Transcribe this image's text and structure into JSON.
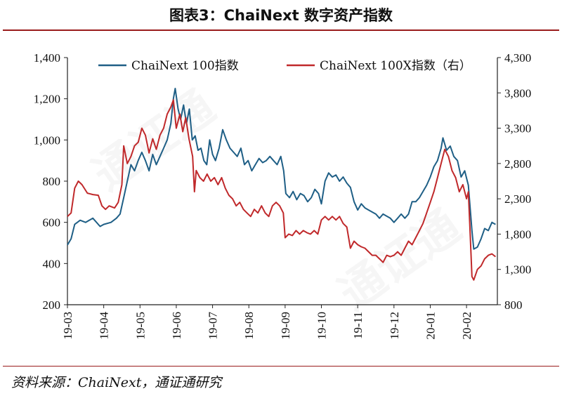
{
  "title": "图表3：ChaiNext 数字资产指数",
  "source": "资料来源：ChaiNext，通证通研究",
  "chart_data": {
    "type": "line",
    "x_ticks": [
      "19-03",
      "19-04",
      "19-05",
      "19-06",
      "19-07",
      "19-08",
      "19-09",
      "19-10",
      "19-11",
      "19-12",
      "20-01",
      "20-02"
    ],
    "y_left_ticks": [
      "1,400",
      "1,200",
      "1,000",
      "800",
      "600",
      "400",
      "200"
    ],
    "y_right_ticks": [
      "4,300",
      "3,800",
      "3,300",
      "2,800",
      "2,300",
      "1,800",
      "1,300",
      "800"
    ],
    "y_left_range": [
      200,
      1400
    ],
    "y_right_range": [
      800,
      4300
    ],
    "x_range": [
      0,
      11.85
    ],
    "grid": false,
    "legend_position": "top",
    "series": [
      {
        "name": "ChaiNext 100指数",
        "axis": "left",
        "color": "#1f5f86",
        "points": [
          [
            0,
            490
          ],
          [
            0.1,
            520
          ],
          [
            0.2,
            590
          ],
          [
            0.35,
            610
          ],
          [
            0.5,
            600
          ],
          [
            0.7,
            620
          ],
          [
            0.9,
            580
          ],
          [
            1.0,
            590
          ],
          [
            1.2,
            600
          ],
          [
            1.35,
            620
          ],
          [
            1.45,
            640
          ],
          [
            1.55,
            720
          ],
          [
            1.65,
            800
          ],
          [
            1.75,
            880
          ],
          [
            1.85,
            850
          ],
          [
            1.95,
            900
          ],
          [
            2.05,
            940
          ],
          [
            2.15,
            900
          ],
          [
            2.25,
            850
          ],
          [
            2.35,
            930
          ],
          [
            2.45,
            880
          ],
          [
            2.55,
            920
          ],
          [
            2.65,
            960
          ],
          [
            2.75,
            1000
          ],
          [
            2.85,
            1080
          ],
          [
            2.92,
            1200
          ],
          [
            2.97,
            1250
          ],
          [
            3.05,
            1150
          ],
          [
            3.12,
            1100
          ],
          [
            3.2,
            1170
          ],
          [
            3.28,
            1080
          ],
          [
            3.36,
            1150
          ],
          [
            3.44,
            1000
          ],
          [
            3.52,
            1020
          ],
          [
            3.6,
            950
          ],
          [
            3.68,
            960
          ],
          [
            3.76,
            900
          ],
          [
            3.84,
            880
          ],
          [
            3.92,
            1000
          ],
          [
            4.0,
            930
          ],
          [
            4.08,
            900
          ],
          [
            4.18,
            960
          ],
          [
            4.28,
            1050
          ],
          [
            4.38,
            1000
          ],
          [
            4.48,
            960
          ],
          [
            4.58,
            940
          ],
          [
            4.68,
            920
          ],
          [
            4.78,
            960
          ],
          [
            4.88,
            880
          ],
          [
            4.98,
            900
          ],
          [
            5.08,
            850
          ],
          [
            5.18,
            880
          ],
          [
            5.28,
            910
          ],
          [
            5.38,
            890
          ],
          [
            5.48,
            900
          ],
          [
            5.58,
            920
          ],
          [
            5.68,
            900
          ],
          [
            5.78,
            880
          ],
          [
            5.88,
            920
          ],
          [
            5.96,
            850
          ],
          [
            6.02,
            740
          ],
          [
            6.12,
            720
          ],
          [
            6.22,
            750
          ],
          [
            6.32,
            710
          ],
          [
            6.42,
            740
          ],
          [
            6.52,
            730
          ],
          [
            6.62,
            700
          ],
          [
            6.72,
            720
          ],
          [
            6.82,
            760
          ],
          [
            6.92,
            740
          ],
          [
            7.0,
            690
          ],
          [
            7.1,
            800
          ],
          [
            7.2,
            840
          ],
          [
            7.3,
            820
          ],
          [
            7.4,
            830
          ],
          [
            7.5,
            800
          ],
          [
            7.6,
            820
          ],
          [
            7.7,
            790
          ],
          [
            7.8,
            770
          ],
          [
            7.9,
            700
          ],
          [
            8.0,
            660
          ],
          [
            8.1,
            690
          ],
          [
            8.2,
            670
          ],
          [
            8.3,
            660
          ],
          [
            8.4,
            650
          ],
          [
            8.5,
            640
          ],
          [
            8.6,
            620
          ],
          [
            8.7,
            640
          ],
          [
            8.8,
            630
          ],
          [
            8.9,
            620
          ],
          [
            9.0,
            600
          ],
          [
            9.1,
            620
          ],
          [
            9.2,
            640
          ],
          [
            9.3,
            620
          ],
          [
            9.4,
            640
          ],
          [
            9.5,
            700
          ],
          [
            9.6,
            700
          ],
          [
            9.7,
            720
          ],
          [
            9.8,
            750
          ],
          [
            9.9,
            780
          ],
          [
            10.0,
            820
          ],
          [
            10.1,
            870
          ],
          [
            10.2,
            900
          ],
          [
            10.3,
            960
          ],
          [
            10.35,
            1010
          ],
          [
            10.45,
            950
          ],
          [
            10.55,
            970
          ],
          [
            10.65,
            920
          ],
          [
            10.75,
            900
          ],
          [
            10.85,
            820
          ],
          [
            10.95,
            850
          ],
          [
            11.05,
            780
          ],
          [
            11.15,
            560
          ],
          [
            11.2,
            470
          ],
          [
            11.3,
            480
          ],
          [
            11.4,
            520
          ],
          [
            11.5,
            570
          ],
          [
            11.6,
            560
          ],
          [
            11.7,
            600
          ],
          [
            11.8,
            590
          ]
        ]
      },
      {
        "name": "ChaiNext 100X指数（右）",
        "axis": "right",
        "color": "#c0292b",
        "points": [
          [
            0,
            2050
          ],
          [
            0.1,
            2100
          ],
          [
            0.2,
            2450
          ],
          [
            0.3,
            2550
          ],
          [
            0.4,
            2500
          ],
          [
            0.55,
            2380
          ],
          [
            0.7,
            2360
          ],
          [
            0.85,
            2350
          ],
          [
            0.95,
            2200
          ],
          [
            1.05,
            2150
          ],
          [
            1.15,
            2200
          ],
          [
            1.3,
            2170
          ],
          [
            1.4,
            2250
          ],
          [
            1.5,
            2500
          ],
          [
            1.55,
            3050
          ],
          [
            1.65,
            2800
          ],
          [
            1.75,
            2900
          ],
          [
            1.85,
            3050
          ],
          [
            1.95,
            3100
          ],
          [
            2.05,
            3300
          ],
          [
            2.15,
            3200
          ],
          [
            2.25,
            2950
          ],
          [
            2.35,
            3150
          ],
          [
            2.45,
            3000
          ],
          [
            2.55,
            3200
          ],
          [
            2.65,
            3300
          ],
          [
            2.75,
            3500
          ],
          [
            2.85,
            3600
          ],
          [
            2.92,
            3700
          ],
          [
            3.0,
            3300
          ],
          [
            3.1,
            3500
          ],
          [
            3.18,
            3250
          ],
          [
            3.26,
            3450
          ],
          [
            3.35,
            3150
          ],
          [
            3.45,
            2900
          ],
          [
            3.5,
            2400
          ],
          [
            3.55,
            2700
          ],
          [
            3.65,
            2600
          ],
          [
            3.75,
            2550
          ],
          [
            3.85,
            2650
          ],
          [
            3.95,
            2550
          ],
          [
            4.05,
            2600
          ],
          [
            4.15,
            2500
          ],
          [
            4.25,
            2600
          ],
          [
            4.35,
            2450
          ],
          [
            4.45,
            2350
          ],
          [
            4.55,
            2300
          ],
          [
            4.65,
            2200
          ],
          [
            4.75,
            2250
          ],
          [
            4.85,
            2150
          ],
          [
            4.95,
            2100
          ],
          [
            5.05,
            2050
          ],
          [
            5.15,
            2150
          ],
          [
            5.25,
            2100
          ],
          [
            5.35,
            2200
          ],
          [
            5.45,
            2100
          ],
          [
            5.55,
            2050
          ],
          [
            5.65,
            2200
          ],
          [
            5.75,
            2250
          ],
          [
            5.85,
            2200
          ],
          [
            5.95,
            2100
          ],
          [
            6.0,
            1750
          ],
          [
            6.1,
            1800
          ],
          [
            6.2,
            1780
          ],
          [
            6.3,
            1850
          ],
          [
            6.4,
            1800
          ],
          [
            6.5,
            1850
          ],
          [
            6.6,
            1820
          ],
          [
            6.7,
            1800
          ],
          [
            6.8,
            1850
          ],
          [
            6.9,
            1800
          ],
          [
            7.0,
            2000
          ],
          [
            7.1,
            2050
          ],
          [
            7.2,
            2000
          ],
          [
            7.3,
            2050
          ],
          [
            7.4,
            2000
          ],
          [
            7.5,
            2050
          ],
          [
            7.6,
            1950
          ],
          [
            7.7,
            1900
          ],
          [
            7.8,
            1600
          ],
          [
            7.9,
            1700
          ],
          [
            8.0,
            1650
          ],
          [
            8.1,
            1620
          ],
          [
            8.2,
            1600
          ],
          [
            8.3,
            1550
          ],
          [
            8.4,
            1500
          ],
          [
            8.5,
            1500
          ],
          [
            8.6,
            1450
          ],
          [
            8.7,
            1400
          ],
          [
            8.8,
            1500
          ],
          [
            8.9,
            1480
          ],
          [
            9.0,
            1500
          ],
          [
            9.1,
            1550
          ],
          [
            9.2,
            1500
          ],
          [
            9.3,
            1600
          ],
          [
            9.4,
            1700
          ],
          [
            9.5,
            1650
          ],
          [
            9.6,
            1750
          ],
          [
            9.7,
            1850
          ],
          [
            9.8,
            1950
          ],
          [
            9.9,
            2100
          ],
          [
            10.0,
            2250
          ],
          [
            10.1,
            2400
          ],
          [
            10.2,
            2600
          ],
          [
            10.3,
            2800
          ],
          [
            10.4,
            3000
          ],
          [
            10.5,
            2900
          ],
          [
            10.6,
            2700
          ],
          [
            10.7,
            2600
          ],
          [
            10.8,
            2400
          ],
          [
            10.9,
            2500
          ],
          [
            11.0,
            2300
          ],
          [
            11.05,
            2400
          ],
          [
            11.1,
            1800
          ],
          [
            11.15,
            1200
          ],
          [
            11.2,
            1150
          ],
          [
            11.3,
            1300
          ],
          [
            11.4,
            1350
          ],
          [
            11.5,
            1450
          ],
          [
            11.6,
            1500
          ],
          [
            11.7,
            1520
          ],
          [
            11.8,
            1480
          ]
        ]
      }
    ]
  }
}
